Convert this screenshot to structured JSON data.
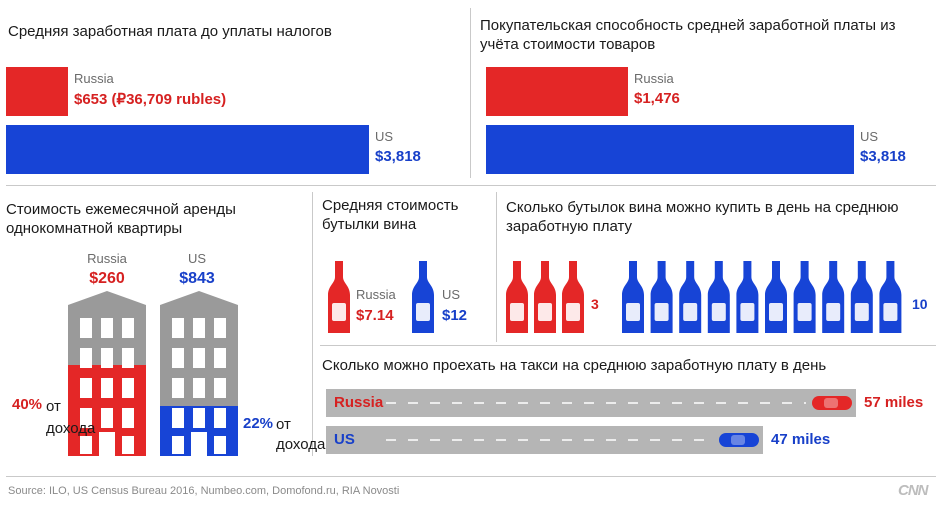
{
  "colors": {
    "russia": "#e42727",
    "us": "#1744d6",
    "road": "#b5b5b5",
    "building": "#9a9a9a"
  },
  "chart_data": [
    {
      "type": "bar",
      "title": "Средняя заработная плата до уплаты налогов",
      "categories": [
        "Russia",
        "US"
      ],
      "values": [
        653,
        3818
      ],
      "labels": [
        "$653 (₽36,709 rubles)",
        "$3,818"
      ],
      "xlim": [
        0,
        3818
      ]
    },
    {
      "type": "bar",
      "title": "Покупательская способность средней заработной платы из учёта стоимости товаров",
      "categories": [
        "Russia",
        "US"
      ],
      "values": [
        1476,
        3818
      ],
      "labels": [
        "$1,476",
        "$3,818"
      ],
      "xlim": [
        0,
        3818
      ]
    },
    {
      "type": "bar",
      "title": "Стоимость ежемесячной аренды однокомнатной квартиры",
      "categories": [
        "Russia",
        "US"
      ],
      "values": [
        260,
        843
      ],
      "labels": [
        "$260",
        "$843"
      ],
      "share_of_income": [
        40,
        22
      ],
      "share_labels": [
        "40%",
        "22%"
      ],
      "share_suffix": "от дохода"
    },
    {
      "type": "bar",
      "title": "Средняя стоимость бутылки вина",
      "categories": [
        "Russia",
        "US"
      ],
      "values": [
        7.14,
        12
      ],
      "labels": [
        "$7.14",
        "$12"
      ]
    },
    {
      "type": "bar",
      "title": "Сколько бутылок вина можно купить в день на среднюю заработную плату",
      "categories": [
        "Russia",
        "US"
      ],
      "values": [
        3,
        10
      ],
      "labels": [
        "3",
        "10"
      ]
    },
    {
      "type": "bar",
      "title": "Сколько можно проехать на такси на среднюю заработную плату в день",
      "categories": [
        "Russia",
        "US"
      ],
      "values": [
        57,
        47
      ],
      "labels": [
        "57 miles",
        "47 miles"
      ],
      "xlim": [
        0,
        57
      ]
    }
  ],
  "source": "Source: ILO, US Census Bureau 2016, Numbeo.com, Domofond.ru, RIA Novosti",
  "logo": "CNN"
}
